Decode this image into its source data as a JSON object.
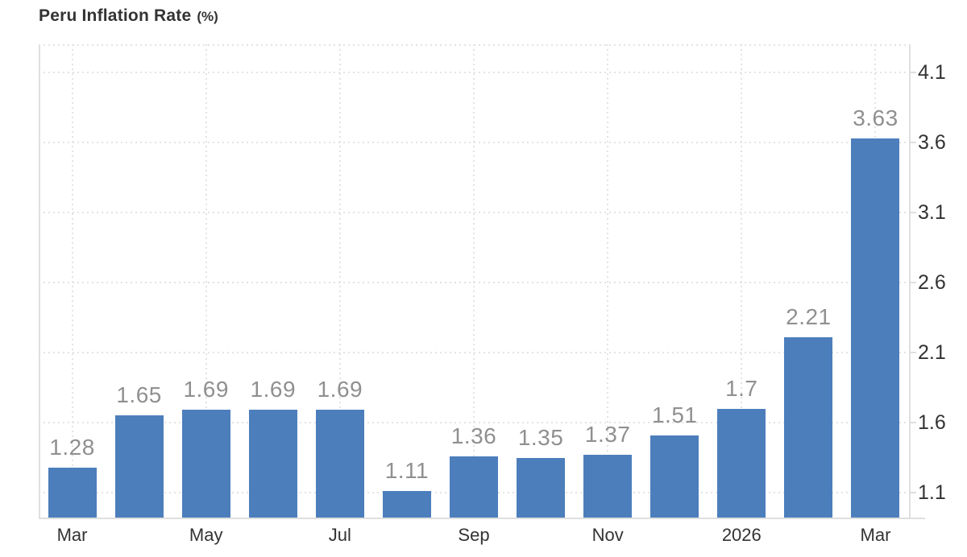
{
  "chart": {
    "title": "Peru Inflation Rate",
    "title_suffix": "(%)",
    "colors": {
      "bar": "#4C7EBC",
      "grid": "#e3e3e3",
      "axis": "#dfdfdf",
      "value_label": "#909090",
      "tick_text": "#333333",
      "title_text": "#333333",
      "background": "#ffffff"
    }
  },
  "chart_data": {
    "type": "bar",
    "title": "Peru Inflation Rate (%)",
    "values": [
      1.28,
      1.65,
      1.69,
      1.69,
      1.69,
      1.11,
      1.36,
      1.35,
      1.37,
      1.51,
      1.7,
      2.21,
      3.63
    ],
    "bar_labels": [
      "1.28",
      "1.65",
      "1.69",
      "1.69",
      "1.69",
      "1.11",
      "1.36",
      "1.35",
      "1.37",
      "1.51",
      "1.7",
      "2.21",
      "3.63"
    ],
    "x_ticks": {
      "labels": [
        "Mar",
        "May",
        "Jul",
        "Sep",
        "Nov",
        "2026",
        "Mar"
      ],
      "bar_indices": [
        0,
        2,
        4,
        6,
        8,
        10,
        12
      ]
    },
    "y_ticks": [
      4.1,
      3.6,
      3.1,
      2.6,
      2.1,
      1.6,
      1.1
    ],
    "y_tick_labels": [
      "4.1",
      "3.6",
      "3.1",
      "2.6",
      "2.1",
      "1.6",
      "1.1"
    ],
    "xlabel": "",
    "ylabel": "",
    "ylim": [
      0.922,
      4.302
    ],
    "grid": "dotted horizontal at y ticks, dotted vertical at labeled bars",
    "legend": "none",
    "y_axis_side": "right",
    "bar_color": "#4C7EBC"
  }
}
